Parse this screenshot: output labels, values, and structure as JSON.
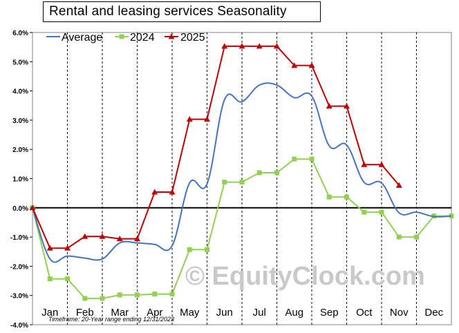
{
  "title": "Rental and leasing services Seasonality",
  "footnote": "Timeframe: 20-Year range ending 12/31/2023",
  "watermark": "© EquityClock.com",
  "chart_data": {
    "type": "line",
    "title": "Rental and leasing services Seasonality",
    "xlabel": "",
    "ylabel": "",
    "ylim": [
      -4.0,
      6.0
    ],
    "y_ticks": [
      "6.0%",
      "5.0%",
      "4.0%",
      "3.0%",
      "2.0%",
      "1.0%",
      "0.0%",
      "-1.0%",
      "-2.0%",
      "-3.0%",
      "-4.0%"
    ],
    "y_tick_values": [
      6,
      5,
      4,
      3,
      2,
      1,
      0,
      -1,
      -2,
      -3,
      -4
    ],
    "categories": [
      "Jan",
      "Feb",
      "Mar",
      "Apr",
      "May",
      "Jun",
      "Jul",
      "Aug",
      "Sep",
      "Oct",
      "Nov",
      "Dec"
    ],
    "grid": "vertical dashed month separators",
    "legend_position": "top-left",
    "series": [
      {
        "name": "Average",
        "color": "#4472c4",
        "marker": "none",
        "smooth": true,
        "x": [
          0,
          0.5,
          1,
          1.5,
          2,
          2.5,
          3,
          3.5,
          4,
          4.5,
          5,
          5.5,
          6,
          6.5,
          7,
          7.5,
          8,
          8.5,
          9,
          9.5,
          10,
          10.5,
          11,
          11.5,
          12
        ],
        "values": [
          0.0,
          -1.75,
          -1.65,
          -1.72,
          -1.75,
          -1.2,
          -1.2,
          -1.25,
          -1.3,
          0.85,
          0.82,
          3.7,
          3.63,
          4.2,
          4.2,
          3.77,
          3.82,
          2.12,
          2.15,
          0.87,
          0.85,
          -0.17,
          -0.15,
          -0.3,
          -0.28
        ]
      },
      {
        "name": "2024",
        "color": "#92d050",
        "marker": "square",
        "x": [
          0,
          0.5,
          1,
          1.5,
          2,
          2.5,
          3,
          3.5,
          4,
          4.5,
          5,
          5.5,
          6,
          6.5,
          7,
          7.5,
          8,
          8.5,
          9,
          9.5,
          10,
          10.5,
          11,
          11.5,
          12
        ],
        "values": [
          0.0,
          -2.43,
          -2.43,
          -3.1,
          -3.1,
          -2.98,
          -2.98,
          -2.95,
          -2.95,
          -1.43,
          -1.43,
          0.88,
          0.88,
          1.2,
          1.2,
          1.67,
          1.67,
          0.37,
          0.37,
          -0.15,
          -0.15,
          -1.0,
          -1.0,
          -0.28,
          -0.28
        ]
      },
      {
        "name": "2025",
        "color": "#c00000",
        "marker": "triangle",
        "x": [
          0,
          0.5,
          1,
          1.5,
          2,
          2.5,
          3,
          3.5,
          4,
          4.5,
          5,
          5.5,
          6,
          6.5,
          7,
          7.5,
          8,
          8.5,
          9,
          9.5,
          10,
          10.5
        ],
        "values": [
          0.0,
          -1.38,
          -1.38,
          -0.98,
          -0.98,
          -1.06,
          -1.06,
          0.54,
          0.54,
          3.03,
          3.03,
          5.53,
          5.53,
          5.53,
          5.53,
          4.87,
          4.87,
          3.48,
          3.48,
          1.48,
          1.48,
          0.77
        ]
      }
    ]
  }
}
